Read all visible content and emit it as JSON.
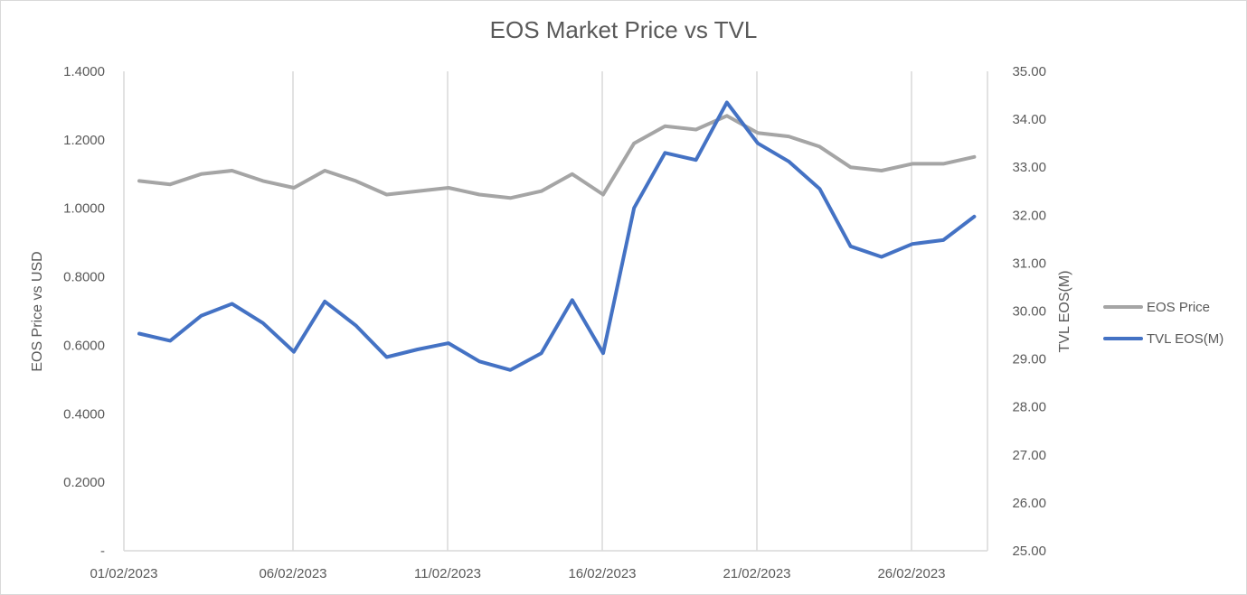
{
  "chart_data": {
    "type": "line",
    "title": "EOS Market Price vs TVL",
    "ylabel": "EOS Price vs USD",
    "y2label": "TVL EOS(M)",
    "ylim": [
      0,
      1.4
    ],
    "y2lim": [
      25,
      35
    ],
    "yticks": [
      "-",
      "0.2000",
      "0.4000",
      "0.6000",
      "0.8000",
      "1.0000",
      "1.2000",
      "1.4000"
    ],
    "y2ticks": [
      "25.00",
      "26.00",
      "27.00",
      "28.00",
      "29.00",
      "30.00",
      "31.00",
      "32.00",
      "33.00",
      "34.00",
      "35.00"
    ],
    "xticks": [
      "01/02/2023",
      "06/02/2023",
      "11/02/2023",
      "16/02/2023",
      "21/02/2023",
      "26/02/2023"
    ],
    "x": [
      "01/02/2023",
      "02/02/2023",
      "03/02/2023",
      "04/02/2023",
      "05/02/2023",
      "06/02/2023",
      "07/02/2023",
      "08/02/2023",
      "09/02/2023",
      "10/02/2023",
      "11/02/2023",
      "12/02/2023",
      "13/02/2023",
      "14/02/2023",
      "15/02/2023",
      "16/02/2023",
      "17/02/2023",
      "18/02/2023",
      "19/02/2023",
      "20/02/2023",
      "21/02/2023",
      "22/02/2023",
      "23/02/2023",
      "24/02/2023",
      "25/02/2023",
      "26/02/2023",
      "27/02/2023",
      "28/02/2023"
    ],
    "grid": "vertical",
    "legend": "right",
    "series": [
      {
        "name": "EOS Price",
        "axis": "left",
        "color": "#a5a5a5",
        "values": [
          1.08,
          1.07,
          1.1,
          1.11,
          1.08,
          1.06,
          1.11,
          1.08,
          1.04,
          1.05,
          1.06,
          1.04,
          1.03,
          1.05,
          1.1,
          1.04,
          1.19,
          1.24,
          1.23,
          1.27,
          1.22,
          1.21,
          1.18,
          1.12,
          1.11,
          1.13,
          1.13,
          1.15
        ]
      },
      {
        "name": "TVL EOS(M)",
        "axis": "right",
        "color": "#4472c4",
        "values": [
          29.53,
          29.38,
          29.9,
          30.15,
          29.75,
          29.15,
          30.2,
          29.7,
          29.04,
          29.2,
          29.33,
          28.95,
          28.77,
          29.12,
          30.23,
          29.12,
          32.15,
          33.3,
          33.15,
          34.35,
          33.5,
          33.12,
          32.55,
          31.35,
          31.13,
          31.4,
          31.48,
          31.97
        ]
      }
    ]
  }
}
